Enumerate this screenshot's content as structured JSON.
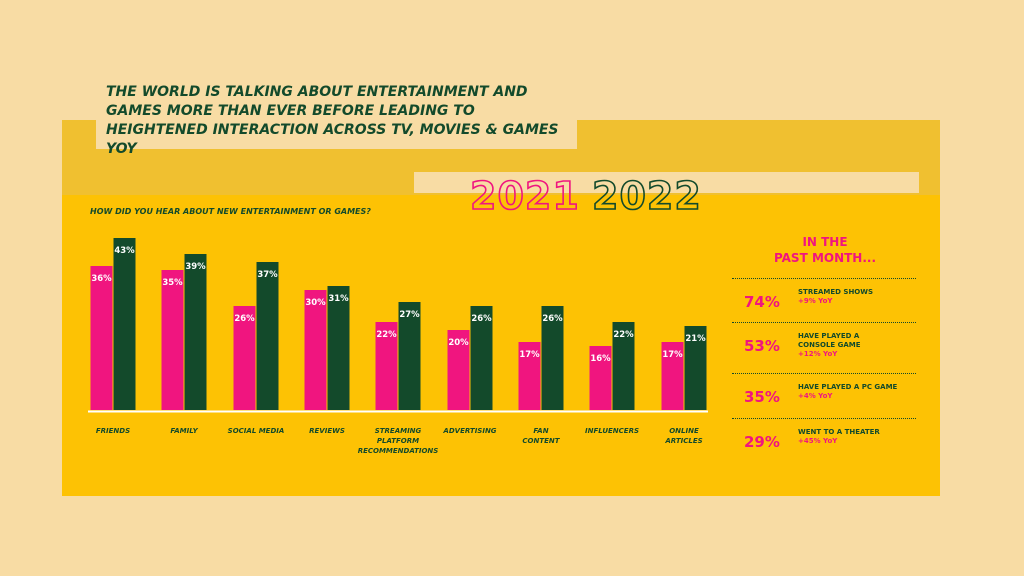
{
  "headline": "THE WORLD IS TALKING ABOUT ENTERTAINMENT AND GAMES MORE THAN EVER BEFORE LEADING TO HEIGHTENED INTERACTION ACROSS TV, MOVIES & GAMES YOY",
  "years": [
    "2021",
    "2022"
  ],
  "colors": {
    "y2021": "#f0157f",
    "y2022": "#134a2b",
    "panel": "#fdc204",
    "background": "#f8dca4"
  },
  "chart_data": {
    "type": "bar",
    "title": "HOW DID YOU HEAR ABOUT NEW ENTERTAINMENT OR GAMES?",
    "categories": [
      "FRIENDS",
      "FAMILY",
      "SOCIAL MEDIA",
      "REVIEWS",
      "STREAMING PLATFORM RECOMMENDATIONS",
      "ADVERTISING",
      "FAN CONTENT",
      "INFLUENCERS",
      "ONLINE ARTICLES"
    ],
    "category_lines": [
      [
        "FRIENDS"
      ],
      [
        "FAMILY"
      ],
      [
        "SOCIAL MEDIA"
      ],
      [
        "REVIEWS"
      ],
      [
        "STREAMING",
        "PLATFORM",
        "RECOMMENDATIONS"
      ],
      [
        "ADVERTISING"
      ],
      [
        "FAN",
        "CONTENT"
      ],
      [
        "INFLUENCERS"
      ],
      [
        "ONLINE",
        "ARTICLES"
      ]
    ],
    "series": [
      {
        "name": "2021",
        "values": [
          36,
          35,
          26,
          30,
          22,
          20,
          17,
          16,
          17
        ]
      },
      {
        "name": "2022",
        "values": [
          43,
          39,
          37,
          31,
          27,
          26,
          26,
          22,
          21
        ]
      }
    ],
    "unit": "%",
    "grid": false
  },
  "side": {
    "title_lines": [
      "IN THE",
      "PAST MONTH..."
    ],
    "stats": [
      {
        "pct": "74%",
        "label": "STREAMED SHOWS",
        "yoy": "+9% YoY"
      },
      {
        "pct": "53%",
        "label": "HAVE PLAYED A CONSOLE GAME",
        "yoy": "+12% YoY"
      },
      {
        "pct": "35%",
        "label": "HAVE PLAYED A PC GAME",
        "yoy": "+4% YoY"
      },
      {
        "pct": "29%",
        "label": "WENT TO A THEATER",
        "yoy": "+45% YoY"
      }
    ]
  }
}
